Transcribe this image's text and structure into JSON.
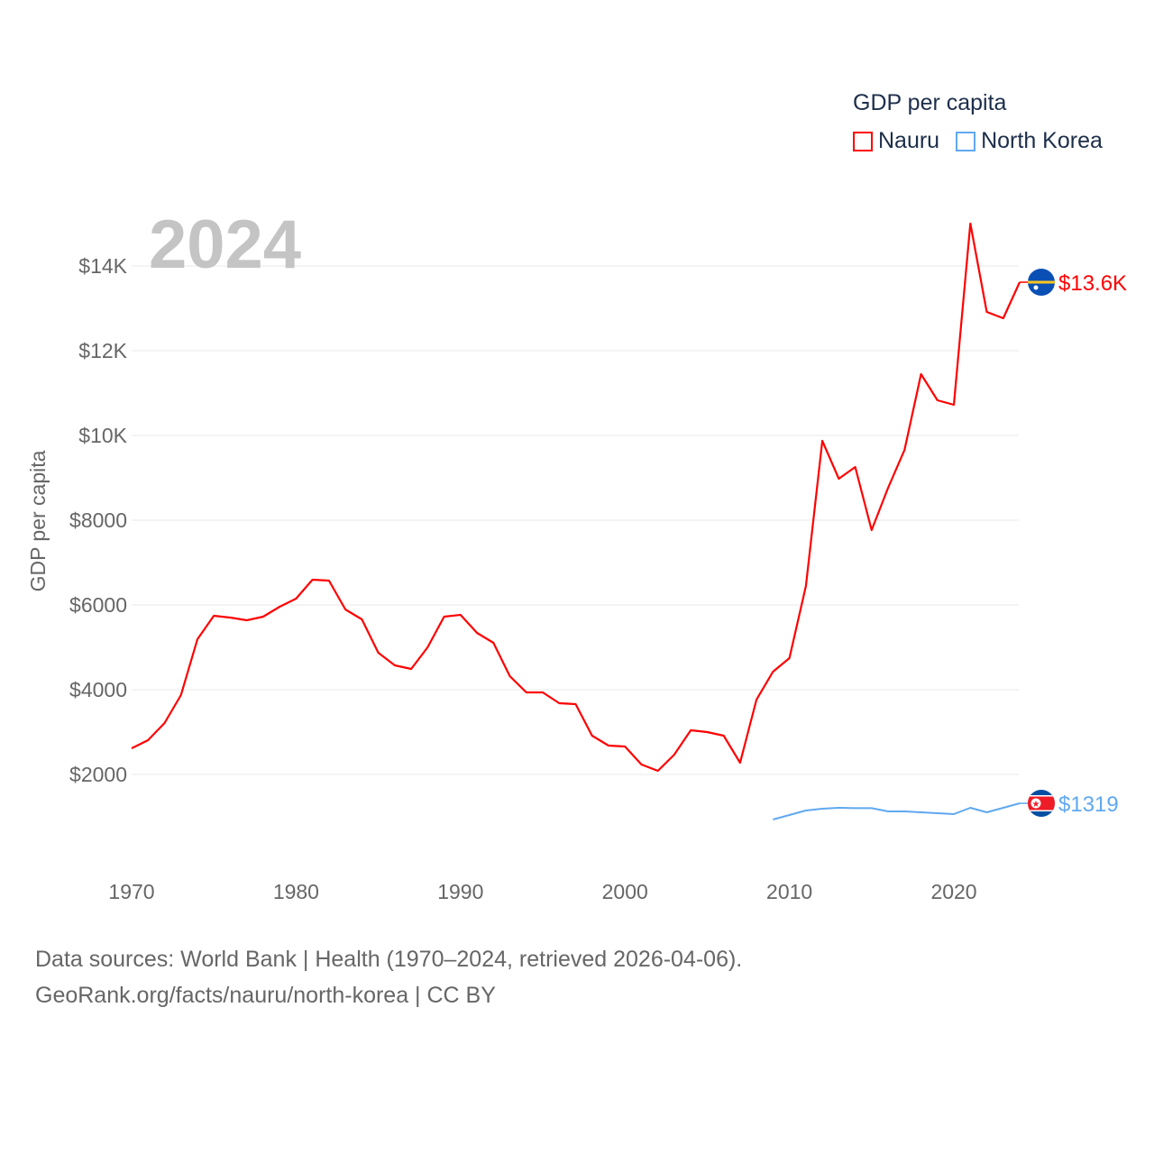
{
  "chart_data": {
    "type": "line",
    "title": "",
    "ylabel": "GDP per capita",
    "xlabel": "",
    "year_label": "2024",
    "xlim": [
      1970,
      2024
    ],
    "ylim": [
      0,
      15000
    ],
    "x_ticks": [
      1970,
      1980,
      1990,
      2000,
      2010,
      2020
    ],
    "y_ticks": [
      2000,
      4000,
      6000,
      8000,
      10000,
      12000,
      14000
    ],
    "y_tick_labels": [
      "$2000",
      "$4000",
      "$6000",
      "$8000",
      "$10K",
      "$12K",
      "$14K"
    ],
    "grid": true,
    "legend": {
      "title": "GDP per capita",
      "placement": "top-right"
    },
    "series": [
      {
        "name": "Nauru",
        "color": "#ff0000",
        "end_label": "$13.6K",
        "flag": "nauru-flag",
        "x_start": 1970,
        "values": [
          2617,
          2809,
          3213,
          3873,
          5192,
          5745,
          5702,
          5638,
          5723,
          5957,
          6149,
          6596,
          6575,
          5894,
          5660,
          4873,
          4575,
          4490,
          5000,
          5723,
          5766,
          5340,
          5106,
          4319,
          3936,
          3936,
          3681,
          3660,
          2915,
          2681,
          2660,
          2234,
          2085,
          2468,
          3043,
          3000,
          2915,
          2277,
          3766,
          4426,
          4745,
          6447,
          9873,
          8979,
          9256,
          7766,
          8766,
          9660,
          11447,
          10830,
          10723,
          15000,
          12915,
          12766,
          13617
        ]
      },
      {
        "name": "North Korea",
        "color": "#5fa8f0",
        "end_label": "$1319",
        "flag": "north-korea-flag",
        "x_start": 2009,
        "values": [
          936,
          1043,
          1149,
          1191,
          1213,
          1205,
          1205,
          1128,
          1128,
          1106,
          1085,
          1064,
          1213,
          1106,
          1213,
          1319
        ]
      }
    ]
  },
  "footer": {
    "line1": "Data sources: World Bank | Health (1970–2024, retrieved 2026-04-06).",
    "line2": "GeoRank.org/facts/nauru/north-korea | CC BY"
  }
}
